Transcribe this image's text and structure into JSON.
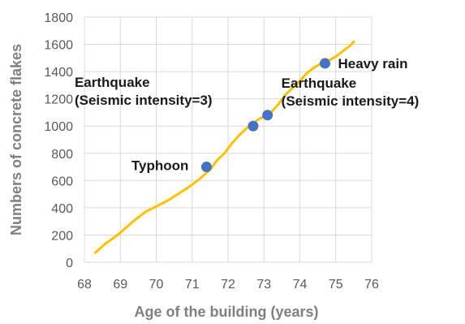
{
  "chart_data": {
    "type": "line",
    "title": "",
    "xlabel": "Age of the building (years)",
    "ylabel": "Numbers of concrete flakes",
    "xlim": [
      68,
      76
    ],
    "ylim": [
      0,
      1800
    ],
    "xticks": [
      68,
      69,
      70,
      71,
      72,
      73,
      74,
      75,
      76
    ],
    "yticks": [
      0,
      200,
      400,
      600,
      800,
      1000,
      1200,
      1400,
      1600,
      1800
    ],
    "grid": true,
    "legend": "none",
    "colors": {
      "line": "#ffc000",
      "events": "#4472c4"
    },
    "series": [
      {
        "x": [
          68.3,
          68.6,
          68.9,
          69.1,
          69.4,
          69.7,
          70.0,
          70.3,
          70.6,
          70.9,
          71.2,
          71.5,
          71.7,
          71.9,
          72.1,
          72.3,
          72.5,
          72.7,
          72.85,
          73.0,
          73.2,
          73.4,
          73.6,
          73.8,
          74.0,
          74.2,
          74.4,
          74.6,
          74.8,
          75.0,
          75.2,
          75.4,
          75.5
        ],
        "y": [
          70,
          140,
          195,
          240,
          310,
          370,
          410,
          450,
          500,
          550,
          610,
          680,
          750,
          800,
          870,
          930,
          980,
          1020,
          1050,
          1070,
          1100,
          1160,
          1230,
          1280,
          1330,
          1390,
          1430,
          1460,
          1480,
          1510,
          1550,
          1590,
          1620
        ]
      }
    ],
    "events": [
      {
        "x": 71.4,
        "y": 700,
        "label": [
          "Typhoon"
        ]
      },
      {
        "x": 72.7,
        "y": 1000,
        "label": [
          "Earthquake",
          "(Seismic intensity=3)"
        ]
      },
      {
        "x": 73.1,
        "y": 1080,
        "label": [
          "Earthquake",
          "(Seismic intensity=4)"
        ]
      },
      {
        "x": 74.7,
        "y": 1460,
        "label": [
          "Heavy rain"
        ]
      }
    ]
  }
}
